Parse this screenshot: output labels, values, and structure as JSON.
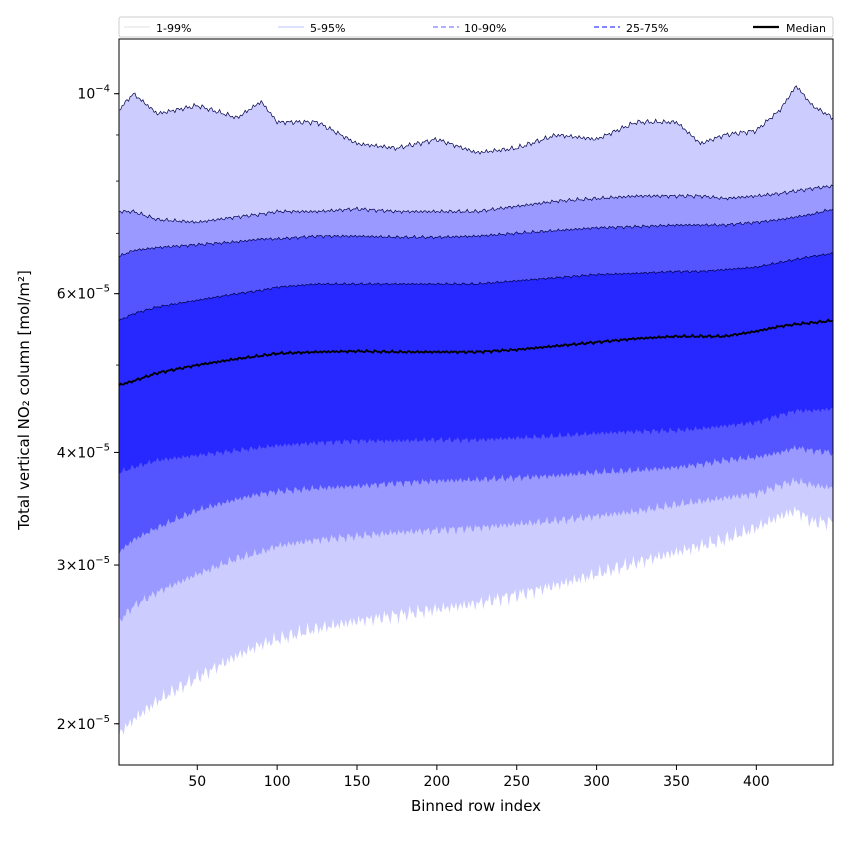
{
  "chart_data": {
    "type": "area",
    "title": "",
    "xlabel": "Binned row index",
    "ylabel": "Total vertical NO₂ column [mol/m²]",
    "yscale": "log",
    "xlim": [
      1,
      448
    ],
    "ylim": [
      1.8e-05,
      0.000115
    ],
    "x_ticks": [
      50,
      100,
      150,
      200,
      250,
      300,
      350,
      400
    ],
    "y_ticks": [
      {
        "value": 2e-05,
        "mantissa": "2",
        "base": "10",
        "exp": "−5"
      },
      {
        "value": 3e-05,
        "mantissa": "3",
        "base": "10",
        "exp": "−5"
      },
      {
        "value": 4e-05,
        "mantissa": "4",
        "base": "10",
        "exp": "−5"
      },
      {
        "value": 6e-05,
        "mantissa": "6",
        "base": "10",
        "exp": "−5"
      },
      {
        "value": 0.0001,
        "mantissa": "",
        "base": "10",
        "exp": "−4"
      }
    ],
    "legend_position": "top",
    "x": [
      1,
      10,
      25,
      50,
      75,
      90,
      100,
      125,
      150,
      175,
      200,
      225,
      250,
      275,
      300,
      325,
      350,
      365,
      380,
      400,
      415,
      425,
      435,
      448
    ],
    "series": [
      {
        "name": "1-99%",
        "color": "#ccccff",
        "lower": [
          1.95e-05,
          2.02e-05,
          2.12e-05,
          2.25e-05,
          2.38e-05,
          2.45e-05,
          2.48e-05,
          2.55e-05,
          2.6e-05,
          2.64e-05,
          2.68e-05,
          2.72e-05,
          2.78e-05,
          2.85e-05,
          2.93e-05,
          3.02e-05,
          3.1e-05,
          3.15e-05,
          3.2e-05,
          3.3e-05,
          3.4e-05,
          3.45e-05,
          3.35e-05,
          3.35e-05
        ],
        "upper": [
          9.6e-05,
          0.0001,
          9.5e-05,
          9.7e-05,
          9.4e-05,
          9.8e-05,
          9.3e-05,
          9.3e-05,
          8.8e-05,
          8.7e-05,
          8.9e-05,
          8.6e-05,
          8.7e-05,
          9e-05,
          8.9e-05,
          9.3e-05,
          9.3e-05,
          8.8e-05,
          9e-05,
          9.1e-05,
          9.6e-05,
          0.000102,
          9.7e-05,
          9.4e-05
        ]
      },
      {
        "name": "5-95%",
        "color": "#9999ff",
        "lower": [
          2.6e-05,
          2.7e-05,
          2.8e-05,
          2.93e-05,
          3.05e-05,
          3.1e-05,
          3.15e-05,
          3.2e-05,
          3.23e-05,
          3.26e-05,
          3.28e-05,
          3.3e-05,
          3.33e-05,
          3.36e-05,
          3.4e-05,
          3.44e-05,
          3.5e-05,
          3.53e-05,
          3.56e-05,
          3.6e-05,
          3.68e-05,
          3.72e-05,
          3.68e-05,
          3.65e-05
        ],
        "upper": [
          7.4e-05,
          7.4e-05,
          7.25e-05,
          7.2e-05,
          7.3e-05,
          7.35e-05,
          7.4e-05,
          7.4e-05,
          7.45e-05,
          7.4e-05,
          7.4e-05,
          7.4e-05,
          7.5e-05,
          7.6e-05,
          7.65e-05,
          7.7e-05,
          7.7e-05,
          7.7e-05,
          7.65e-05,
          7.7e-05,
          7.75e-05,
          7.8e-05,
          7.85e-05,
          7.9e-05
        ]
      },
      {
        "name": "10-90%",
        "color": "#5555ff",
        "lower": [
          3.1e-05,
          3.2e-05,
          3.3e-05,
          3.45e-05,
          3.55e-05,
          3.6e-05,
          3.62e-05,
          3.65e-05,
          3.67e-05,
          3.7e-05,
          3.72e-05,
          3.73e-05,
          3.75e-05,
          3.77e-05,
          3.8e-05,
          3.82e-05,
          3.85e-05,
          3.88e-05,
          3.92e-05,
          3.95e-05,
          4e-05,
          4.05e-05,
          4.02e-05,
          4e-05
        ],
        "upper": [
          6.6e-05,
          6.7e-05,
          6.75e-05,
          6.8e-05,
          6.85e-05,
          6.9e-05,
          6.9e-05,
          6.95e-05,
          6.95e-05,
          6.93e-05,
          6.93e-05,
          6.95e-05,
          7e-05,
          7.05e-05,
          7.1e-05,
          7.12e-05,
          7.15e-05,
          7.15e-05,
          7.15e-05,
          7.2e-05,
          7.25e-05,
          7.3e-05,
          7.35e-05,
          7.45e-05
        ]
      },
      {
        "name": "25-75%",
        "color": "#2727ff",
        "lower": [
          3.8e-05,
          3.85e-05,
          3.92e-05,
          3.97e-05,
          4.02e-05,
          4.05e-05,
          4.07e-05,
          4.1e-05,
          4.12e-05,
          4.12e-05,
          4.13e-05,
          4.13e-05,
          4.15e-05,
          4.17e-05,
          4.2e-05,
          4.22e-05,
          4.23e-05,
          4.25e-05,
          4.28e-05,
          4.32e-05,
          4.4e-05,
          4.45e-05,
          4.45e-05,
          4.47e-05
        ],
        "upper": [
          5.6e-05,
          5.7e-05,
          5.8e-05,
          5.9e-05,
          6e-05,
          6.05e-05,
          6.1e-05,
          6.15e-05,
          6.15e-05,
          6.15e-05,
          6.15e-05,
          6.15e-05,
          6.2e-05,
          6.25e-05,
          6.3e-05,
          6.32e-05,
          6.35e-05,
          6.35e-05,
          6.38e-05,
          6.42e-05,
          6.5e-05,
          6.55e-05,
          6.6e-05,
          6.65e-05
        ]
      }
    ],
    "median": {
      "name": "Median",
      "color": "#000000",
      "values": [
        4.75e-05,
        4.8e-05,
        4.9e-05,
        5e-05,
        5.08e-05,
        5.12e-05,
        5.15e-05,
        5.17e-05,
        5.18e-05,
        5.17e-05,
        5.17e-05,
        5.17e-05,
        5.2e-05,
        5.25e-05,
        5.3e-05,
        5.35e-05,
        5.38e-05,
        5.38e-05,
        5.38e-05,
        5.45e-05,
        5.52e-05,
        5.55e-05,
        5.57e-05,
        5.6e-05
      ]
    },
    "legend": [
      {
        "label": "1-99%",
        "color": "#d8d8d8",
        "dash": "none",
        "width": 0.8
      },
      {
        "label": "5-95%",
        "color": "#aab0ff",
        "dash": "none",
        "width": 0.8
      },
      {
        "label": "10-90%",
        "color": "#8080ff",
        "dash": "5,3",
        "width": 1.2
      },
      {
        "label": "25-75%",
        "color": "#3a3aff",
        "dash": "5,3",
        "width": 1.2
      },
      {
        "label": "Median",
        "color": "#000000",
        "dash": "none",
        "width": 2.2
      }
    ]
  }
}
